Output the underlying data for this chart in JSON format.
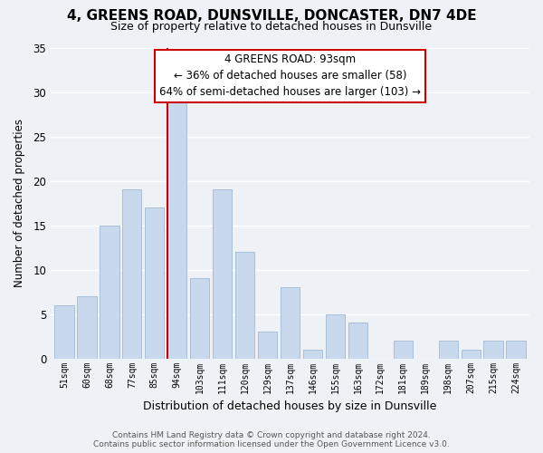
{
  "title": "4, GREENS ROAD, DUNSVILLE, DONCASTER, DN7 4DE",
  "subtitle": "Size of property relative to detached houses in Dunsville",
  "xlabel": "Distribution of detached houses by size in Dunsville",
  "ylabel": "Number of detached properties",
  "bar_labels": [
    "51sqm",
    "60sqm",
    "68sqm",
    "77sqm",
    "85sqm",
    "94sqm",
    "103sqm",
    "111sqm",
    "120sqm",
    "129sqm",
    "137sqm",
    "146sqm",
    "155sqm",
    "163sqm",
    "172sqm",
    "181sqm",
    "189sqm",
    "198sqm",
    "207sqm",
    "215sqm",
    "224sqm"
  ],
  "bar_values": [
    6,
    7,
    15,
    19,
    17,
    29,
    9,
    19,
    12,
    3,
    8,
    1,
    5,
    4,
    0,
    2,
    0,
    2,
    1,
    2,
    2
  ],
  "bar_color": "#c8d9ed",
  "bar_edge_color": "#a8c0d8",
  "highlight_bar_index": 5,
  "highlight_line_color": "#cc0000",
  "ylim": [
    0,
    35
  ],
  "yticks": [
    0,
    5,
    10,
    15,
    20,
    25,
    30,
    35
  ],
  "annotation_title": "4 GREENS ROAD: 93sqm",
  "annotation_line1": "← 36% of detached houses are smaller (58)",
  "annotation_line2": "64% of semi-detached houses are larger (103) →",
  "annotation_box_color": "#ffffff",
  "annotation_box_edge_color": "#cc0000",
  "footer_line1": "Contains HM Land Registry data © Crown copyright and database right 2024.",
  "footer_line2": "Contains public sector information licensed under the Open Government Licence v3.0.",
  "background_color": "#eef2f7",
  "grid_color": "#ffffff"
}
